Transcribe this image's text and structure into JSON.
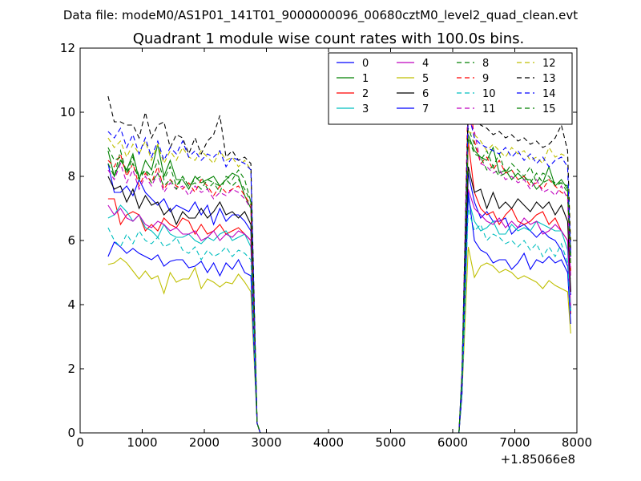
{
  "header": {
    "data_file": "Data file: modeM0/AS1P01_141T01_9000000096_00680cztM0_level2_quad_clean.evt"
  },
  "chart_data": {
    "type": "line",
    "title": "Quadrant 1 module wise count rates with 100.0s bins.",
    "xlabel": "",
    "ylabel": "",
    "x_offset_label": "+1.85066e8",
    "xlim": [
      0,
      8000
    ],
    "ylim": [
      0,
      12
    ],
    "x_ticks": [
      0,
      1000,
      2000,
      3000,
      4000,
      5000,
      6000,
      7000,
      8000
    ],
    "y_ticks": [
      0,
      2,
      4,
      6,
      8,
      10,
      12
    ],
    "legend_position": "top-right",
    "legend_columns": 4,
    "gap_x": [
      2900,
      6100
    ],
    "seg1_x": [
      450,
      550,
      650,
      750,
      850,
      950,
      1050,
      1150,
      1250,
      1350,
      1450,
      1550,
      1650,
      1750,
      1850,
      1950,
      2050,
      2150,
      2250,
      2350,
      2450,
      2550,
      2650,
      2750,
      2850
    ],
    "seg2_x": [
      6150,
      6250,
      6350,
      6450,
      6550,
      6650,
      6750,
      6850,
      6950,
      7050,
      7150,
      7250,
      7350,
      7450,
      7550,
      7650,
      7750,
      7850,
      7900
    ],
    "series": [
      {
        "name": "0",
        "color": "#0000ff",
        "dash": false,
        "seg1": [
          8.4,
          7.5,
          7.5,
          7.7,
          7.4,
          7.9,
          7.5,
          7.3,
          7.1,
          7.3,
          6.9,
          7.1,
          7.0,
          6.9,
          7.2,
          6.8,
          7.1,
          6.5,
          7.0,
          6.6,
          6.8,
          6.8,
          6.6,
          6.3,
          0.3
        ],
        "seg2": [
          1.5,
          8.1,
          7.2,
          6.7,
          6.9,
          6.6,
          6.6,
          6.7,
          6.2,
          6.4,
          6.5,
          6.3,
          6.1,
          6.3,
          6.1,
          6.0,
          5.7,
          5.2,
          4.3
        ]
      },
      {
        "name": "1",
        "color": "#008000",
        "dash": false,
        "seg1": [
          8.8,
          8.0,
          8.5,
          8.2,
          8.7,
          7.9,
          8.5,
          8.2,
          9.0,
          8.0,
          8.5,
          7.9,
          7.9,
          7.6,
          8.0,
          7.8,
          7.9,
          8.0,
          7.7,
          7.9,
          8.1,
          8.0,
          7.4,
          7.0,
          0.3
        ],
        "seg2": [
          1.8,
          9.3,
          8.8,
          8.6,
          8.5,
          8.9,
          8.1,
          8.2,
          7.9,
          8.1,
          7.9,
          7.9,
          7.6,
          7.8,
          8.3,
          7.7,
          7.9,
          7.6,
          5.5
        ]
      },
      {
        "name": "2",
        "color": "#ff0000",
        "dash": false,
        "seg1": [
          7.3,
          7.3,
          6.5,
          6.8,
          6.9,
          6.8,
          6.3,
          6.5,
          6.3,
          6.7,
          6.5,
          6.4,
          6.7,
          6.6,
          6.2,
          6.5,
          6.2,
          6.3,
          6.5,
          6.2,
          6.3,
          6.4,
          6.2,
          6.0,
          0.3
        ],
        "seg2": [
          1.4,
          9.1,
          7.5,
          7.0,
          6.8,
          6.9,
          6.5,
          6.8,
          7.0,
          6.6,
          6.5,
          6.6,
          6.8,
          6.9,
          6.5,
          6.7,
          6.3,
          6.0,
          3.7
        ]
      },
      {
        "name": "3",
        "color": "#00bfbf",
        "dash": false,
        "seg1": [
          6.7,
          6.8,
          7.1,
          6.9,
          6.6,
          6.8,
          6.4,
          6.3,
          6.1,
          6.5,
          6.2,
          6.1,
          6.1,
          6.2,
          6.0,
          5.9,
          6.1,
          6.0,
          6.2,
          6.3,
          6.0,
          6.1,
          6.2,
          5.8,
          0.3
        ],
        "seg2": [
          1.3,
          7.3,
          6.6,
          6.3,
          6.4,
          6.6,
          6.2,
          6.2,
          6.5,
          6.3,
          6.4,
          6.3,
          6.6,
          6.5,
          6.4,
          6.3,
          6.3,
          5.7,
          3.8
        ]
      },
      {
        "name": "4",
        "color": "#bf00bf",
        "dash": false,
        "seg1": [
          7.1,
          6.8,
          7.0,
          6.7,
          6.6,
          6.8,
          6.5,
          6.4,
          6.6,
          6.5,
          6.3,
          6.4,
          6.2,
          6.2,
          6.3,
          6.0,
          6.1,
          6.3,
          6.0,
          6.2,
          6.1,
          6.3,
          6.2,
          6.0,
          0.3
        ],
        "seg2": [
          1.4,
          7.6,
          7.0,
          6.8,
          6.6,
          6.5,
          6.7,
          6.4,
          6.6,
          6.4,
          6.7,
          6.5,
          6.6,
          6.2,
          6.3,
          6.5,
          6.3,
          6.0,
          3.9
        ]
      },
      {
        "name": "5",
        "color": "#bfbf00",
        "dash": false,
        "seg1": [
          5.25,
          5.3,
          5.45,
          5.3,
          5.05,
          4.8,
          5.05,
          4.8,
          4.9,
          4.35,
          5.0,
          4.7,
          4.8,
          4.8,
          5.15,
          4.5,
          4.8,
          4.7,
          4.55,
          4.7,
          4.65,
          4.95,
          4.7,
          4.4,
          0.3
        ],
        "seg2": [
          1.2,
          5.8,
          4.85,
          5.2,
          5.3,
          5.2,
          5.0,
          5.1,
          5.0,
          4.8,
          4.9,
          4.8,
          4.7,
          4.5,
          4.75,
          4.6,
          4.5,
          4.4,
          3.1
        ]
      },
      {
        "name": "6",
        "color": "#000000",
        "dash": false,
        "seg1": [
          8.0,
          7.6,
          7.7,
          7.2,
          7.6,
          7.0,
          7.4,
          7.1,
          7.2,
          6.8,
          7.0,
          6.5,
          6.9,
          6.7,
          6.7,
          7.0,
          6.7,
          6.9,
          7.2,
          6.8,
          6.9,
          6.7,
          6.9,
          6.5,
          0.3
        ],
        "seg2": [
          1.5,
          8.3,
          7.5,
          7.6,
          7.0,
          7.5,
          7.0,
          7.2,
          7.0,
          7.3,
          7.1,
          6.9,
          7.2,
          7.0,
          7.2,
          6.8,
          7.1,
          6.6,
          4.4
        ]
      },
      {
        "name": "7",
        "color": "#0000ff",
        "dash": false,
        "seg1": [
          5.5,
          5.95,
          5.8,
          5.6,
          5.75,
          5.6,
          5.5,
          5.4,
          5.55,
          5.2,
          5.35,
          5.4,
          5.4,
          5.15,
          5.2,
          5.35,
          5.0,
          5.3,
          4.9,
          5.3,
          5.1,
          5.4,
          5.0,
          4.9,
          0.3
        ],
        "seg2": [
          1.2,
          7.5,
          6.0,
          5.7,
          5.6,
          5.3,
          5.4,
          5.4,
          5.1,
          5.3,
          5.6,
          5.1,
          5.4,
          5.3,
          5.5,
          5.3,
          5.4,
          5.0,
          3.4
        ]
      },
      {
        "name": "8",
        "color": "#008000",
        "dash": true,
        "seg1": [
          8.4,
          8.0,
          8.8,
          8.1,
          8.6,
          8.0,
          8.2,
          8.0,
          8.5,
          7.9,
          8.3,
          7.7,
          8.0,
          7.7,
          7.9,
          8.0,
          7.6,
          7.8,
          7.5,
          8.0,
          7.9,
          8.2,
          7.9,
          7.2,
          0.3
        ],
        "seg2": [
          1.7,
          9.5,
          9.0,
          8.5,
          8.8,
          8.3,
          8.7,
          8.1,
          8.4,
          8.2,
          8.0,
          8.3,
          7.8,
          8.1,
          8.0,
          7.7,
          7.8,
          7.7,
          5.5
        ]
      },
      {
        "name": "9",
        "color": "#ff0000",
        "dash": true,
        "seg1": [
          8.5,
          8.3,
          8.7,
          8.0,
          8.4,
          7.7,
          8.1,
          7.8,
          8.3,
          7.6,
          7.9,
          7.7,
          7.6,
          7.8,
          7.5,
          7.9,
          7.7,
          7.4,
          7.7,
          7.5,
          7.6,
          7.7,
          7.4,
          7.1,
          0.3
        ],
        "seg2": [
          1.7,
          11.0,
          9.1,
          8.4,
          8.6,
          8.2,
          8.5,
          8.1,
          8.2,
          7.9,
          8.0,
          7.7,
          7.8,
          7.6,
          7.9,
          7.7,
          7.5,
          7.4,
          5.0
        ]
      },
      {
        "name": "10",
        "color": "#00bfbf",
        "dash": true,
        "seg1": [
          6.4,
          6.0,
          5.8,
          6.2,
          5.9,
          6.3,
          6.0,
          5.9,
          6.1,
          5.8,
          5.9,
          6.1,
          5.7,
          5.6,
          5.8,
          5.4,
          5.7,
          5.5,
          5.6,
          5.8,
          5.5,
          5.7,
          5.6,
          5.4,
          0.3
        ],
        "seg2": [
          1.3,
          7.0,
          6.3,
          6.5,
          6.0,
          6.2,
          6.1,
          5.9,
          6.0,
          5.8,
          6.0,
          5.7,
          5.9,
          5.5,
          5.8,
          5.5,
          5.9,
          5.3,
          3.7
        ]
      },
      {
        "name": "11",
        "color": "#bf00bf",
        "dash": true,
        "seg1": [
          8.2,
          7.9,
          8.4,
          7.8,
          8.2,
          7.6,
          8.0,
          7.7,
          8.1,
          7.5,
          7.8,
          7.6,
          7.7,
          7.4,
          7.7,
          7.5,
          7.6,
          7.3,
          7.5,
          7.4,
          7.6,
          7.5,
          7.3,
          7.0,
          0.3
        ],
        "seg2": [
          1.7,
          9.8,
          9.4,
          8.4,
          8.3,
          8.1,
          8.2,
          7.9,
          8.0,
          7.8,
          7.9,
          7.6,
          7.9,
          7.5,
          7.6,
          7.4,
          7.7,
          7.3,
          4.8
        ]
      },
      {
        "name": "12",
        "color": "#bfbf00",
        "dash": true,
        "seg1": [
          9.2,
          8.9,
          9.1,
          8.6,
          9.0,
          8.7,
          9.1,
          8.5,
          9.0,
          8.4,
          8.8,
          8.5,
          8.9,
          8.6,
          8.5,
          8.8,
          8.6,
          8.4,
          8.8,
          8.5,
          8.6,
          8.3,
          8.5,
          8.2,
          0.3
        ],
        "seg2": [
          1.9,
          9.4,
          9.3,
          9.1,
          8.8,
          9.0,
          8.8,
          8.6,
          8.9,
          8.7,
          8.8,
          8.5,
          8.6,
          8.4,
          8.9,
          8.6,
          8.7,
          8.6,
          6.0
        ]
      },
      {
        "name": "13",
        "color": "#000000",
        "dash": true,
        "seg1": [
          10.5,
          9.7,
          9.7,
          9.6,
          9.6,
          9.2,
          10.0,
          9.2,
          9.6,
          9.7,
          8.9,
          9.3,
          9.2,
          8.7,
          9.2,
          8.7,
          9.1,
          9.3,
          9.9,
          8.6,
          8.8,
          8.5,
          8.6,
          8.4,
          0.3
        ],
        "seg2": [
          1.9,
          10.3,
          9.8,
          9.6,
          9.5,
          9.3,
          9.4,
          9.2,
          9.3,
          9.1,
          9.2,
          9.0,
          9.1,
          8.9,
          9.0,
          9.2,
          9.6,
          8.8,
          5.6
        ]
      },
      {
        "name": "14",
        "color": "#0000ff",
        "dash": true,
        "seg1": [
          9.4,
          9.2,
          9.5,
          8.9,
          9.3,
          8.7,
          9.2,
          8.6,
          9.1,
          8.5,
          8.9,
          8.7,
          9.1,
          8.6,
          8.8,
          8.5,
          8.7,
          8.6,
          8.8,
          8.3,
          8.6,
          8.5,
          8.4,
          8.2,
          0.3
        ],
        "seg2": [
          1.9,
          10.0,
          9.2,
          9.0,
          8.9,
          8.8,
          8.7,
          8.9,
          8.6,
          8.8,
          8.5,
          8.7,
          8.4,
          8.6,
          8.3,
          8.5,
          8.6,
          8.3,
          5.5
        ]
      },
      {
        "name": "15",
        "color": "#008000",
        "dash": true,
        "seg1": [
          8.9,
          8.5,
          8.6,
          8.1,
          8.4,
          7.9,
          8.2,
          7.8,
          8.1,
          7.7,
          7.9,
          7.6,
          8.0,
          7.7,
          7.8,
          7.6,
          7.9,
          7.8,
          7.7,
          7.9,
          7.7,
          7.9,
          7.6,
          7.2,
          0.3
        ],
        "seg2": [
          1.8,
          9.2,
          8.7,
          8.6,
          8.2,
          8.3,
          8.0,
          8.1,
          8.2,
          7.9,
          8.0,
          7.8,
          8.1,
          7.8,
          7.9,
          7.8,
          7.8,
          7.5,
          5.2
        ]
      }
    ]
  }
}
